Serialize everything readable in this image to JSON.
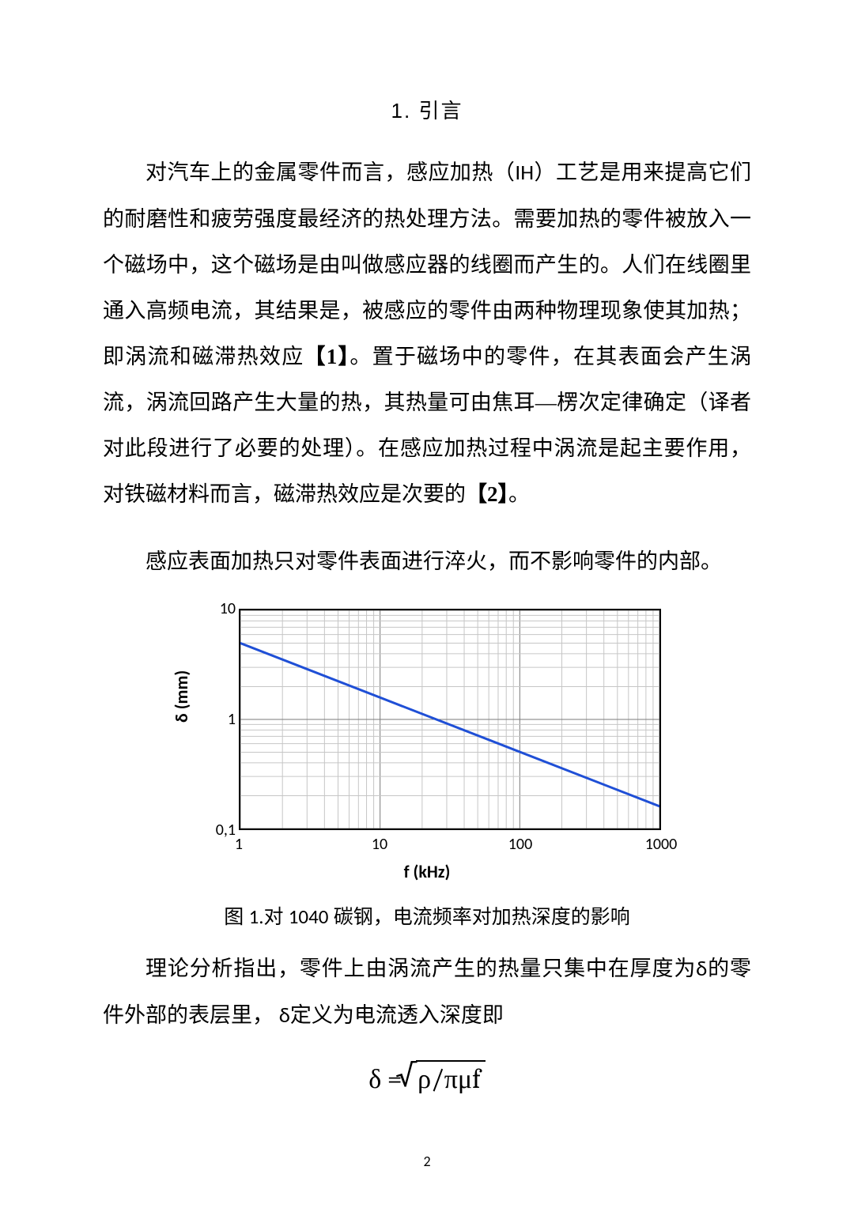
{
  "section_title": "1. 引言",
  "para1_parts": [
    {
      "t": "对汽车上的金属零件而言，感应加热（",
      "cls": ""
    },
    {
      "t": "IH",
      "cls": "west"
    },
    {
      "t": "）工艺是用来提高它们的耐磨性和疲劳强度最经济的热处理方法。需要加热的零件被放入一个磁场中，这个磁场是由叫做感应器的线圈而产生的。人们在线圈里通入高频电流，其结果是，被感应的零件由两种物理现象使其加热；即涡流和磁滞热效应",
      "cls": ""
    },
    {
      "t": "【1】",
      "cls": "bold"
    },
    {
      "t": "。置于磁场中的零件，在其表面会产生涡流，涡流回路产生大量的热，其热量可由焦耳—楞次定律确定（译者对此段进行了必要的处理）。在感应加热过程中涡流是起主要作用，对铁磁材料而言，磁滞热效应是次要的",
      "cls": ""
    },
    {
      "t": "【2】",
      "cls": "bold"
    },
    {
      "t": "。",
      "cls": ""
    }
  ],
  "para2": "感应表面加热只对零件表面进行淬火，而不影响零件的内部。",
  "chart": {
    "type": "line-loglog",
    "ylabel": "δ (mm)",
    "xlabel": "f (kHz)",
    "xdomain_log10": [
      0,
      3
    ],
    "ydomain_log10": [
      -1,
      1
    ],
    "xticks": [
      {
        "value": 1,
        "label": "1"
      },
      {
        "value": 10,
        "label": "10"
      },
      {
        "value": 100,
        "label": "100"
      },
      {
        "value": 1000,
        "label": "1000"
      }
    ],
    "yticks": [
      {
        "value": 0.1,
        "label": "0,1"
      },
      {
        "value": 1,
        "label": "1"
      },
      {
        "value": 10,
        "label": "10"
      }
    ],
    "line_color": "#1f4fd6",
    "line_width": 3,
    "grid_major_color": "#7a7a7a",
    "grid_minor_color": "#c6c6c6",
    "series": [
      {
        "f": 1,
        "delta": 5.0
      },
      {
        "f": 1000,
        "delta": 0.16
      }
    ]
  },
  "figure_caption_parts": [
    {
      "t": "图 ",
      "cls": ""
    },
    {
      "t": "1",
      "cls": "west"
    },
    {
      "t": ".对 ",
      "cls": ""
    },
    {
      "t": "1040",
      "cls": "west"
    },
    {
      "t": " 碳钢，电流频率对加热深度的影响",
      "cls": ""
    }
  ],
  "para3_parts": [
    {
      "t": "理论分析指出，零件上由涡流产生的热量只集中在厚度为",
      "cls": ""
    },
    {
      "t": "δ",
      "cls": "west"
    },
    {
      "t": "的零件外部的表层里， ",
      "cls": ""
    },
    {
      "t": "δ",
      "cls": "west"
    },
    {
      "t": "定义为电流透入深度即",
      "cls": ""
    }
  ],
  "formula": {
    "lhs": "δ",
    "eq": " = ",
    "radicand": "ρ/πμf"
  },
  "page_number": "2"
}
